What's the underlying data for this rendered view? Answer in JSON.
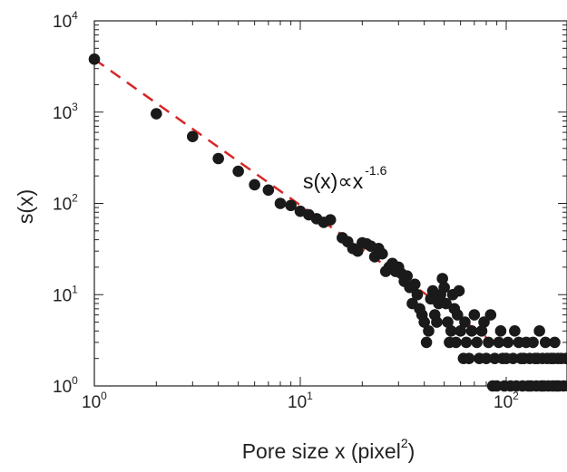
{
  "chart_data": {
    "type": "scatter",
    "title": "",
    "xlabel": "Pore size x  (pixel",
    "xlabel_sup": "2",
    "xlabel_suffix": ")",
    "ylabel": "s(x)",
    "xscale": "log",
    "yscale": "log",
    "xlim": [
      1,
      200
    ],
    "ylim": [
      1,
      10000
    ],
    "x_ticks": [
      {
        "base": "10",
        "exp": "0"
      },
      {
        "base": "10",
        "exp": "1"
      },
      {
        "base": "10",
        "exp": "2"
      }
    ],
    "y_ticks": [
      {
        "base": "10",
        "exp": "0"
      },
      {
        "base": "10",
        "exp": "1"
      },
      {
        "base": "10",
        "exp": "2"
      },
      {
        "base": "10",
        "exp": "3"
      },
      {
        "base": "10",
        "exp": "4"
      }
    ],
    "annotation": {
      "text": "s(x)∝x",
      "exponent": "-1.6"
    },
    "fit_line": {
      "style": "dashed",
      "color": "#d62728",
      "coefficient": 3800,
      "exponent": -1.6,
      "x_range": [
        1,
        80
      ]
    },
    "marker_color": "#1a1a1a",
    "series": [
      {
        "points": [
          [
            1,
            3800
          ],
          [
            2,
            960
          ],
          [
            3,
            540
          ],
          [
            4,
            310
          ],
          [
            5,
            225
          ],
          [
            6,
            160
          ],
          [
            7,
            140
          ],
          [
            8,
            100
          ],
          [
            9,
            95
          ],
          [
            10,
            82
          ],
          [
            11,
            75
          ],
          [
            12,
            68
          ],
          [
            13,
            62
          ],
          [
            14,
            66
          ],
          [
            16,
            42
          ],
          [
            17,
            38
          ],
          [
            18,
            32
          ],
          [
            19,
            30
          ],
          [
            20,
            37
          ],
          [
            21,
            36
          ],
          [
            22,
            34
          ],
          [
            23,
            26
          ],
          [
            24,
            32
          ],
          [
            25,
            28
          ],
          [
            26,
            18
          ],
          [
            27,
            20
          ],
          [
            28,
            22
          ],
          [
            29,
            18
          ],
          [
            30,
            20
          ],
          [
            31,
            17
          ],
          [
            32,
            14
          ],
          [
            33,
            16
          ],
          [
            34,
            12
          ],
          [
            35,
            8
          ],
          [
            36,
            13
          ],
          [
            37,
            10
          ],
          [
            38,
            7
          ],
          [
            39,
            6
          ],
          [
            40,
            5
          ],
          [
            41,
            3
          ],
          [
            42,
            4
          ],
          [
            43,
            9
          ],
          [
            44,
            11
          ],
          [
            45,
            6
          ],
          [
            46,
            5
          ],
          [
            47,
            8
          ],
          [
            48,
            10
          ],
          [
            49,
            15
          ],
          [
            50,
            12
          ],
          [
            51,
            8
          ],
          [
            52,
            5
          ],
          [
            53,
            3
          ],
          [
            54,
            4
          ],
          [
            55,
            10
          ],
          [
            56,
            7
          ],
          [
            57,
            3
          ],
          [
            58,
            6
          ],
          [
            59,
            11
          ],
          [
            60,
            4
          ],
          [
            62,
            2
          ],
          [
            63,
            5
          ],
          [
            64,
            3
          ],
          [
            66,
            2
          ],
          [
            68,
            4
          ],
          [
            70,
            6
          ],
          [
            72,
            3
          ],
          [
            74,
            2
          ],
          [
            76,
            4
          ],
          [
            78,
            5
          ],
          [
            80,
            2
          ],
          [
            82,
            3
          ],
          [
            84,
            6
          ],
          [
            86,
            1
          ],
          [
            88,
            2
          ],
          [
            90,
            1
          ],
          [
            92,
            3
          ],
          [
            94,
            4
          ],
          [
            96,
            2
          ],
          [
            98,
            1
          ],
          [
            100,
            2
          ],
          [
            102,
            3
          ],
          [
            105,
            1
          ],
          [
            108,
            2
          ],
          [
            110,
            4
          ],
          [
            112,
            1
          ],
          [
            115,
            3
          ],
          [
            118,
            2
          ],
          [
            120,
            1
          ],
          [
            122,
            2
          ],
          [
            125,
            3
          ],
          [
            128,
            1
          ],
          [
            130,
            2
          ],
          [
            132,
            1
          ],
          [
            135,
            3
          ],
          [
            138,
            2
          ],
          [
            140,
            1
          ],
          [
            142,
            2
          ],
          [
            145,
            4
          ],
          [
            148,
            1
          ],
          [
            150,
            2
          ],
          [
            152,
            1
          ],
          [
            155,
            3
          ],
          [
            158,
            2
          ],
          [
            160,
            1
          ],
          [
            165,
            2
          ],
          [
            168,
            1
          ],
          [
            170,
            2
          ],
          [
            172,
            3
          ],
          [
            175,
            1
          ],
          [
            178,
            2
          ],
          [
            180,
            1
          ],
          [
            185,
            2
          ],
          [
            190,
            1
          ],
          [
            195,
            2
          ],
          [
            200,
            1
          ]
        ]
      }
    ]
  }
}
